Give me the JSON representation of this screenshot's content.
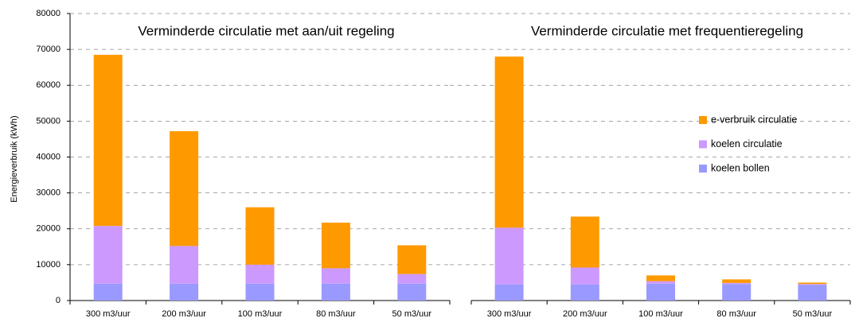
{
  "chart_data": [
    {
      "type": "bar",
      "stacked": true,
      "title": "Verminderde circulatie met aan/uit regeling",
      "ylabel": "Energieverbruik (kWh)",
      "categories": [
        "300 m3/uur",
        "200 m3/uur",
        "100 m3/uur",
        "80 m3/uur",
        "50 m3/uur"
      ],
      "series": [
        {
          "color": "#9999ff",
          "values": [
            4700,
            4700,
            4700,
            4700,
            4700
          ]
        },
        {
          "color": "#cc99ff",
          "values": [
            16100,
            10500,
            5300,
            4300,
            2700
          ]
        },
        {
          "color": "#ff9900",
          "values": [
            47700,
            32000,
            16000,
            12700,
            8000
          ]
        }
      ],
      "ylim": [
        0,
        80000
      ],
      "yticks": [
        0,
        10000,
        20000,
        30000,
        40000,
        50000,
        60000,
        70000,
        80000
      ],
      "grid": true
    },
    {
      "type": "bar",
      "stacked": true,
      "title": "Verminderde circulatie met frequentieregeling",
      "categories": [
        "300 m3/uur",
        "200 m3/uur",
        "100 m3/uur",
        "80 m3/uur",
        "50 m3/uur"
      ],
      "series": [
        {
          "name": "koelen bollen",
          "color": "#9999ff",
          "values": [
            4500,
            4500,
            4700,
            4600,
            4400
          ]
        },
        {
          "name": "koelen circulatie",
          "color": "#cc99ff",
          "values": [
            15800,
            4700,
            700,
            300,
            200
          ]
        },
        {
          "name": "e-verbruik circulatie",
          "color": "#ff9900",
          "values": [
            47700,
            14200,
            1600,
            1000,
            400
          ]
        }
      ],
      "ylim": [
        0,
        80000
      ],
      "yticks": [
        0,
        10000,
        20000,
        30000,
        40000,
        50000,
        60000,
        70000,
        80000
      ],
      "grid": true,
      "legend": "right"
    }
  ]
}
